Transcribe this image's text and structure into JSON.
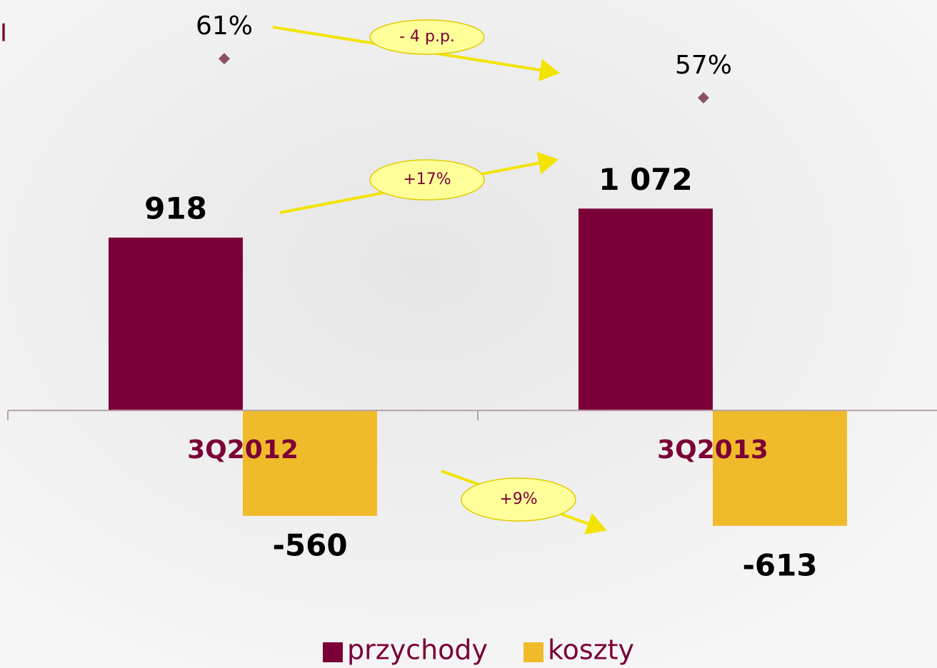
{
  "chart_data": {
    "type": "bar",
    "corner_label": "I",
    "categories": [
      "3Q2012",
      "3Q2013"
    ],
    "series": [
      {
        "name": "przychody",
        "color": "#7b0037",
        "values": [
          918,
          1072
        ],
        "value_labels": [
          "918",
          "1 072"
        ]
      },
      {
        "name": "koszty",
        "color": "#f0bb2a",
        "values": [
          -560,
          -613
        ]
      }
    ],
    "ratio": {
      "color": "#8b5068",
      "axis": "y2",
      "values": [
        61,
        57
      ],
      "value_labels": [
        "61%",
        "57%"
      ]
    },
    "ylim": [
      -1300,
      2180
    ],
    "y2lim": [
      0,
      67
    ],
    "annotations": [
      "- 4 p.p.",
      "+17%",
      "+9%"
    ]
  }
}
